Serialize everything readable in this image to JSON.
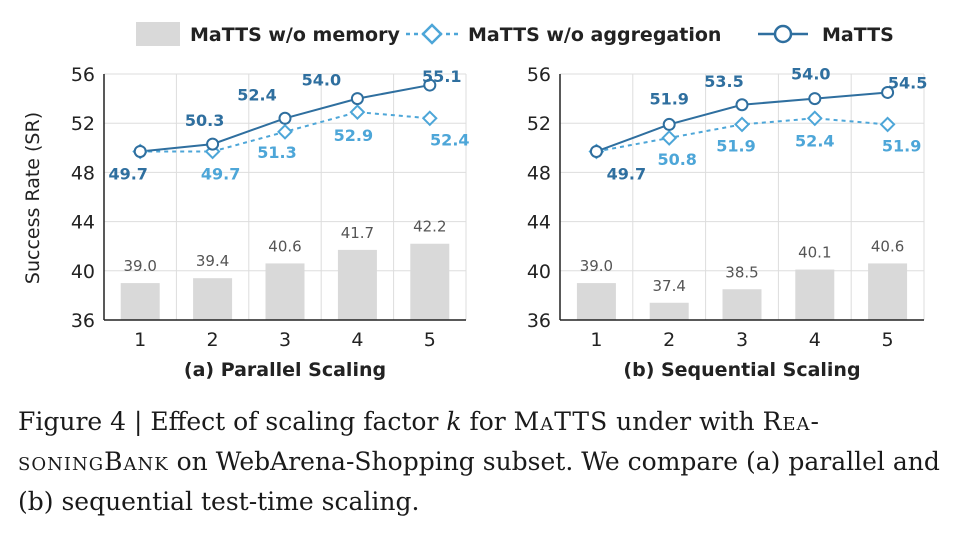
{
  "legend": {
    "bar": "MaTTS w/o memory",
    "dashed": "MaTTS w/o aggregation",
    "solid": "MaTTS"
  },
  "colors": {
    "bar": "#d9d9d9",
    "dashed": "#4da6d8",
    "solid": "#2f6f9f",
    "grid": "#dddddd",
    "axis": "#222222"
  },
  "ylabel": "Success Rate (SR)",
  "chart_data": [
    {
      "type": "bar",
      "title": "(a) Parallel Scaling",
      "categories": [
        "1",
        "2",
        "3",
        "4",
        "5"
      ],
      "ylim": [
        36,
        56
      ],
      "yticks": [
        "36",
        "40",
        "44",
        "48",
        "52",
        "56"
      ],
      "ylabel": "Success Rate (SR)",
      "legend_position": "top",
      "grid": true,
      "series": [
        {
          "name": "MaTTS w/o memory",
          "kind": "bar",
          "values": [
            39.0,
            39.4,
            40.6,
            41.7,
            42.2
          ],
          "labels": [
            "39.0",
            "39.4",
            "40.6",
            "41.7",
            "42.2"
          ]
        },
        {
          "name": "MaTTS w/o aggregation",
          "kind": "dashed-line",
          "values": [
            49.7,
            49.7,
            51.3,
            52.9,
            52.4
          ],
          "labels": [
            "49.7",
            "49.7",
            "51.3",
            "52.9",
            "52.4"
          ]
        },
        {
          "name": "MaTTS",
          "kind": "line",
          "values": [
            49.7,
            50.3,
            52.4,
            54.0,
            55.1
          ],
          "labels": [
            "",
            "50.3",
            "52.4",
            "54.0",
            "55.1"
          ]
        }
      ]
    },
    {
      "type": "bar",
      "title": "(b) Sequential Scaling",
      "categories": [
        "1",
        "2",
        "3",
        "4",
        "5"
      ],
      "ylim": [
        36,
        56
      ],
      "yticks": [
        "36",
        "40",
        "44",
        "48",
        "52",
        "56"
      ],
      "legend_position": "top",
      "grid": true,
      "series": [
        {
          "name": "MaTTS w/o memory",
          "kind": "bar",
          "values": [
            39.0,
            37.4,
            38.5,
            40.1,
            40.6
          ],
          "labels": [
            "39.0",
            "37.4",
            "38.5",
            "40.1",
            "40.6"
          ]
        },
        {
          "name": "MaTTS w/o aggregation",
          "kind": "dashed-line",
          "values": [
            49.7,
            50.8,
            51.9,
            52.4,
            51.9
          ],
          "labels": [
            "49.7",
            "50.8",
            "51.9",
            "52.4",
            "51.9"
          ]
        },
        {
          "name": "MaTTS",
          "kind": "line",
          "values": [
            49.7,
            51.9,
            53.5,
            54.0,
            54.5
          ],
          "labels": [
            "",
            "51.9",
            "53.5",
            "54.0",
            "54.5"
          ]
        }
      ]
    }
  ],
  "caption": {
    "part1": "Figure 4 | Effect of scaling factor ",
    "k": "k",
    "part2": " for ",
    "matts": "MaTTS",
    "part3": " under with ",
    "rb1": "Rea-",
    "rb2": "soningBank",
    "part4": " on WebArena-Shopping subset. We compare (a) parallel and (b) sequential test-time scaling."
  }
}
